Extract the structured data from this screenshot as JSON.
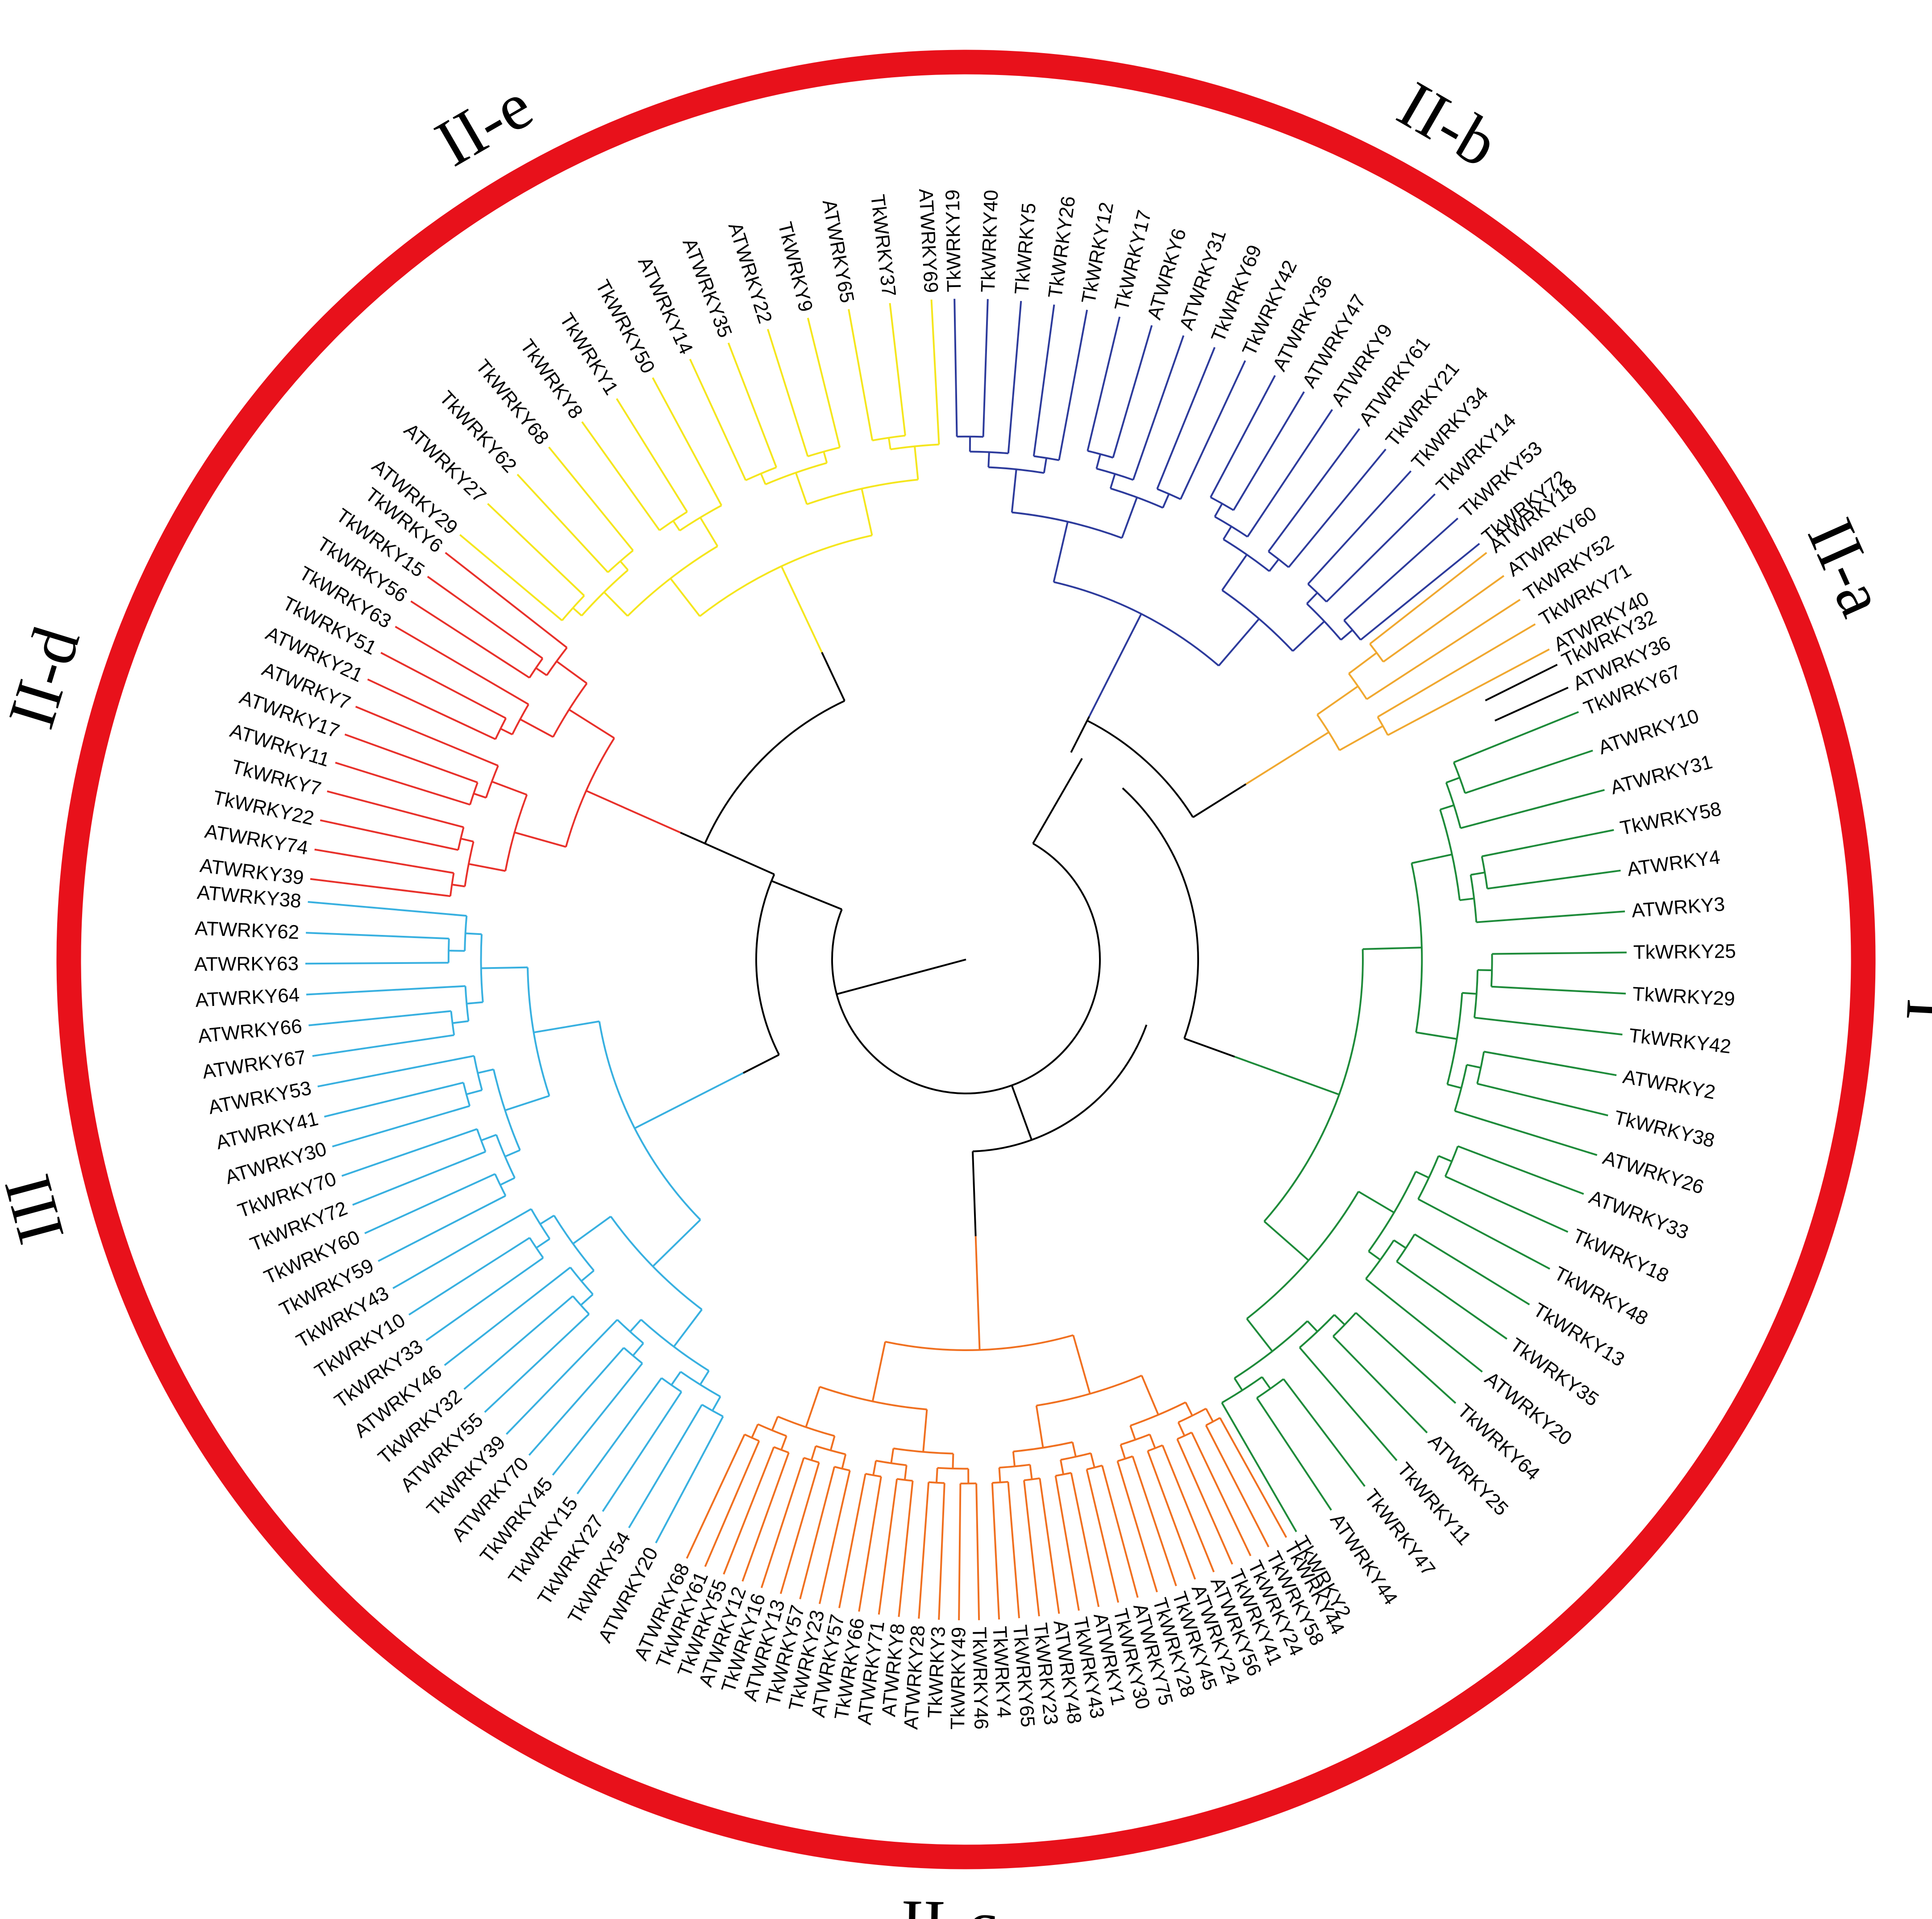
{
  "diagram": {
    "type": "circular-phylogenetic-tree",
    "ring_color": "#e8111b",
    "groups": [
      {
        "id": "I",
        "label": "I",
        "color": "#1e8b3a",
        "leaves": [
          "TkWRKY67",
          "ATWRKY10",
          "ATWRKY31",
          "TkWRKY58",
          "ATWRKY4",
          "ATWRKY3",
          "TkWRKY25",
          "TkWRKY29",
          "TkWRKY42",
          "ATWRKY2",
          "TkWRKY38",
          "ATWRKY26",
          "ATWRKY33",
          "TkWRKY18",
          "TkWRKY48",
          "TkWRKY13",
          "TkWRKY35",
          "ATWRKY20",
          "TkWRKY64",
          "ATWRKY25",
          "TkWRKY11",
          "TkWRKY47",
          "ATWRKY44",
          "TkWRKY2"
        ]
      },
      {
        "id": "IIc",
        "label": "II-c",
        "color": "#f07020",
        "leaves": [
          "TkWRKY44",
          "TkWRKY58",
          "TkWRKY24",
          "TkWRKY41",
          "ATWRKY56",
          "ATWRKY24",
          "TkWRKY45",
          "TkWRKY28",
          "ATWRKY75",
          "TkWRKY30",
          "ATWRKY1",
          "TkWRKY43",
          "ATWRKY48",
          "TkWRKY23",
          "TkWRKY65",
          "TkWRKY4",
          "TkWRKY46",
          "TkWRKY49",
          "TkWRKY3",
          "ATWRKY28",
          "ATWRKY8",
          "ATWRKY71",
          "TkWRKY66",
          "ATWRKY57",
          "TkWRKY23",
          "TkWRKY57",
          "ATWRKY13",
          "TkWRKY16",
          "ATWRKY12",
          "TkWRKY55",
          "TkWRKY61",
          "ATWRKY68"
        ]
      },
      {
        "id": "III",
        "label": "III",
        "color": "#38b0e0",
        "leaves": [
          "ATWRKY20",
          "TkWRKY54",
          "TkWRKY27",
          "TkWRKY15",
          "TkWRKY45",
          "ATWRKY70",
          "TkWRKY39",
          "ATWRKY55",
          "TkWRKY32",
          "ATWRKY46",
          "TkWRKY33",
          "TkWRKY10",
          "TkWRKY43",
          "TkWRKY59",
          "TkWRKY60",
          "TkWRKY72",
          "TkWRKY70",
          "ATWRKY30",
          "ATWRKY41",
          "ATWRKY53",
          "ATWRKY67",
          "ATWRKY66",
          "ATWRKY64",
          "ATWRKY63",
          "ATWRKY62",
          "ATWRKY38"
        ]
      },
      {
        "id": "IId",
        "label": "II-d",
        "color": "#e8312b",
        "leaves": [
          "ATWRKY39",
          "ATWRKY74",
          "TkWRKY22",
          "TkWRKY7",
          "ATWRKY11",
          "ATWRKY17",
          "ATWRKY7",
          "ATWRKY21",
          "TkWRKY51",
          "TkWRKY63",
          "TkWRKY56",
          "TkWRKY15",
          "TkWRKY6"
        ]
      },
      {
        "id": "IIe",
        "label": "II-e",
        "color": "#f5e61e",
        "leaves": [
          "ATWRKY29",
          "ATWRKY27",
          "TkWRKY62",
          "TkWRKY68",
          "TkWRKY8",
          "TkWRKY1",
          "TkWRKY50",
          "ATWRKY14",
          "ATWRKY35",
          "ATWRKY22",
          "TkWRKY9",
          "ATWRKY65",
          "TkWRKY37",
          "ATWRKY69"
        ]
      },
      {
        "id": "IIb",
        "label": "II-b",
        "color": "#2d3b9c",
        "leaves": [
          "TkWRKY19",
          "TkWRKY40",
          "TkWRKY5",
          "TkWRKY26",
          "TkWRKY12",
          "TkWRKY17",
          "ATWRKY6",
          "ATWRKY31",
          "TkWRKY69",
          "TkWRKY42",
          "ATWRKY36",
          "ATWRKY47",
          "ATWRKY9",
          "ATWRKY61",
          "TkWRKY21",
          "TkWRKY34",
          "TkWRKY14",
          "TkWRKY53",
          "TkWRKY72"
        ]
      },
      {
        "id": "IIa",
        "label": "II-a",
        "color": "#f0a830",
        "leaves": [
          "ATWRKY18",
          "ATWRKY60",
          "TkWRKY52",
          "TkWRKY71",
          "ATWRKY40"
        ]
      }
    ],
    "extra_leaves_between_IIa_and_I": [
      "TkWRKY32",
      "ATWRKY36"
    ],
    "backbone_color": "#000000"
  }
}
